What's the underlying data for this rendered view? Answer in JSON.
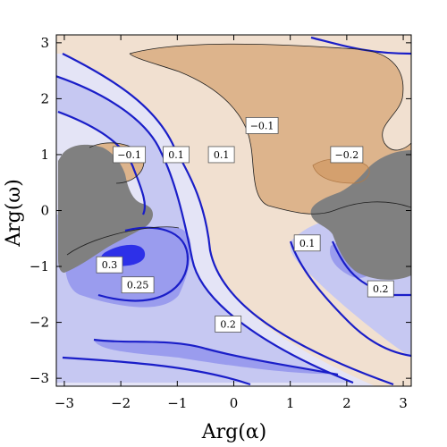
{
  "chart_data": {
    "type": "contour",
    "xlabel": "Arg(α)",
    "ylabel": "Arg(ω)",
    "xlim": [
      -3.14159,
      3.14159
    ],
    "ylim": [
      -3.14159,
      3.14159
    ],
    "x_ticks": [
      -3,
      -2,
      -1,
      0,
      1,
      2,
      3
    ],
    "y_ticks": [
      -3,
      -2,
      -1,
      0,
      1,
      2,
      3
    ],
    "x_tick_labels": [
      "−3",
      "−2",
      "−1",
      "0",
      "1",
      "2",
      "3"
    ],
    "y_tick_labels": [
      "−3",
      "−2",
      "−1",
      "0",
      "1",
      "2",
      "3"
    ],
    "grid": false,
    "levels": [
      -0.2,
      -0.1,
      0,
      0.1,
      0.2,
      0.25,
      0.3
    ],
    "colors": {
      "neg_high": "#d4a06e",
      "neg_mid": "#ddb48c",
      "neg_low": "#f1e0d0",
      "pos_low": "#e4e4f6",
      "pos_mid": "#c6c8f2",
      "pos_high": "#9a9cee",
      "pos_peak": "#2d30e8",
      "contour_line": "#1a1ec8",
      "neg_line": "#b07a48",
      "excluded": "#808080"
    },
    "contour_labels": [
      {
        "text": "−0.1",
        "x": -1.85,
        "y": 1.0
      },
      {
        "text": "0.1",
        "x": -1.02,
        "y": 1.0
      },
      {
        "text": "0.1",
        "x": -0.22,
        "y": 1.0
      },
      {
        "text": "−0.1",
        "x": 0.5,
        "y": 1.52
      },
      {
        "text": "−0.2",
        "x": 2.0,
        "y": 1.0
      },
      {
        "text": "0.1",
        "x": 1.3,
        "y": -0.58
      },
      {
        "text": "0.3",
        "x": -2.2,
        "y": -0.97
      },
      {
        "text": "0.25",
        "x": -1.7,
        "y": -1.33
      },
      {
        "text": "0.2",
        "x": -0.1,
        "y": -2.03
      },
      {
        "text": "0.2",
        "x": 2.6,
        "y": -1.4
      }
    ]
  }
}
